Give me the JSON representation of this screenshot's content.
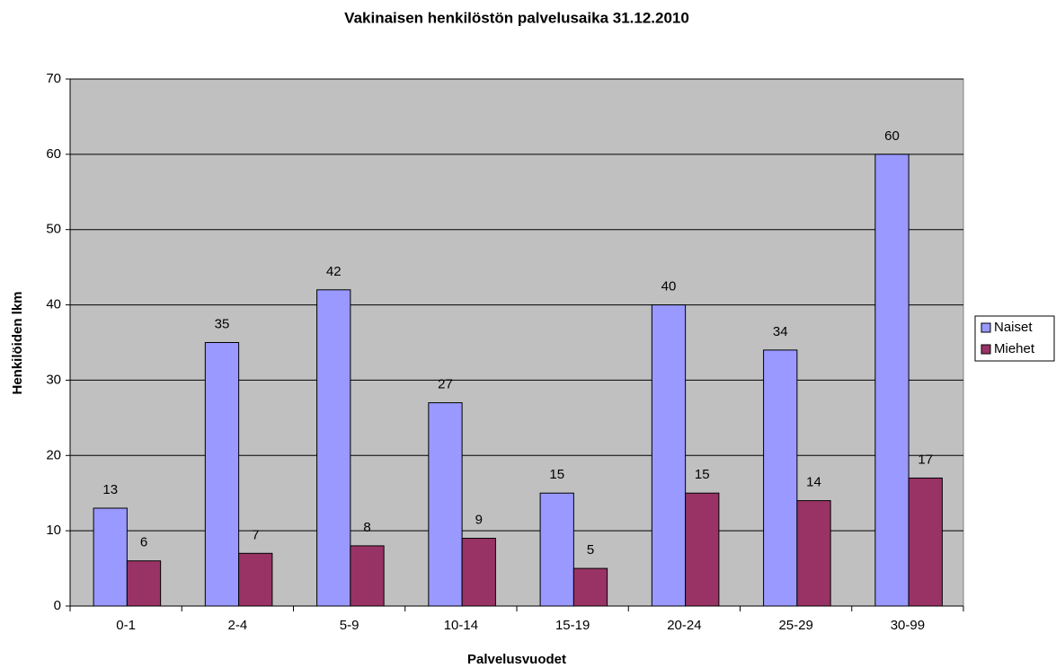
{
  "chart_data": {
    "type": "bar",
    "title": "Vakinaisen henkilöstön palvelusaika 31.12.2010",
    "x_label": "Palvelusvuodet",
    "y_label": "Henkilöiden lkm",
    "categories": [
      "0-1",
      "2-4",
      "5-9",
      "10-14",
      "15-19",
      "20-24",
      "25-29",
      "30-99"
    ],
    "series": [
      {
        "name": "Naiset",
        "color": "#9999ff",
        "values": [
          13,
          35,
          42,
          27,
          15,
          40,
          34,
          60
        ]
      },
      {
        "name": "Miehet",
        "color": "#993366",
        "values": [
          6,
          7,
          8,
          9,
          5,
          15,
          14,
          17
        ]
      }
    ],
    "ylim": [
      0,
      70
    ],
    "yticks": [
      0,
      10,
      20,
      30,
      40,
      50,
      60,
      70
    ],
    "grid": true,
    "legend": "right",
    "background": "#c0c0c0"
  }
}
